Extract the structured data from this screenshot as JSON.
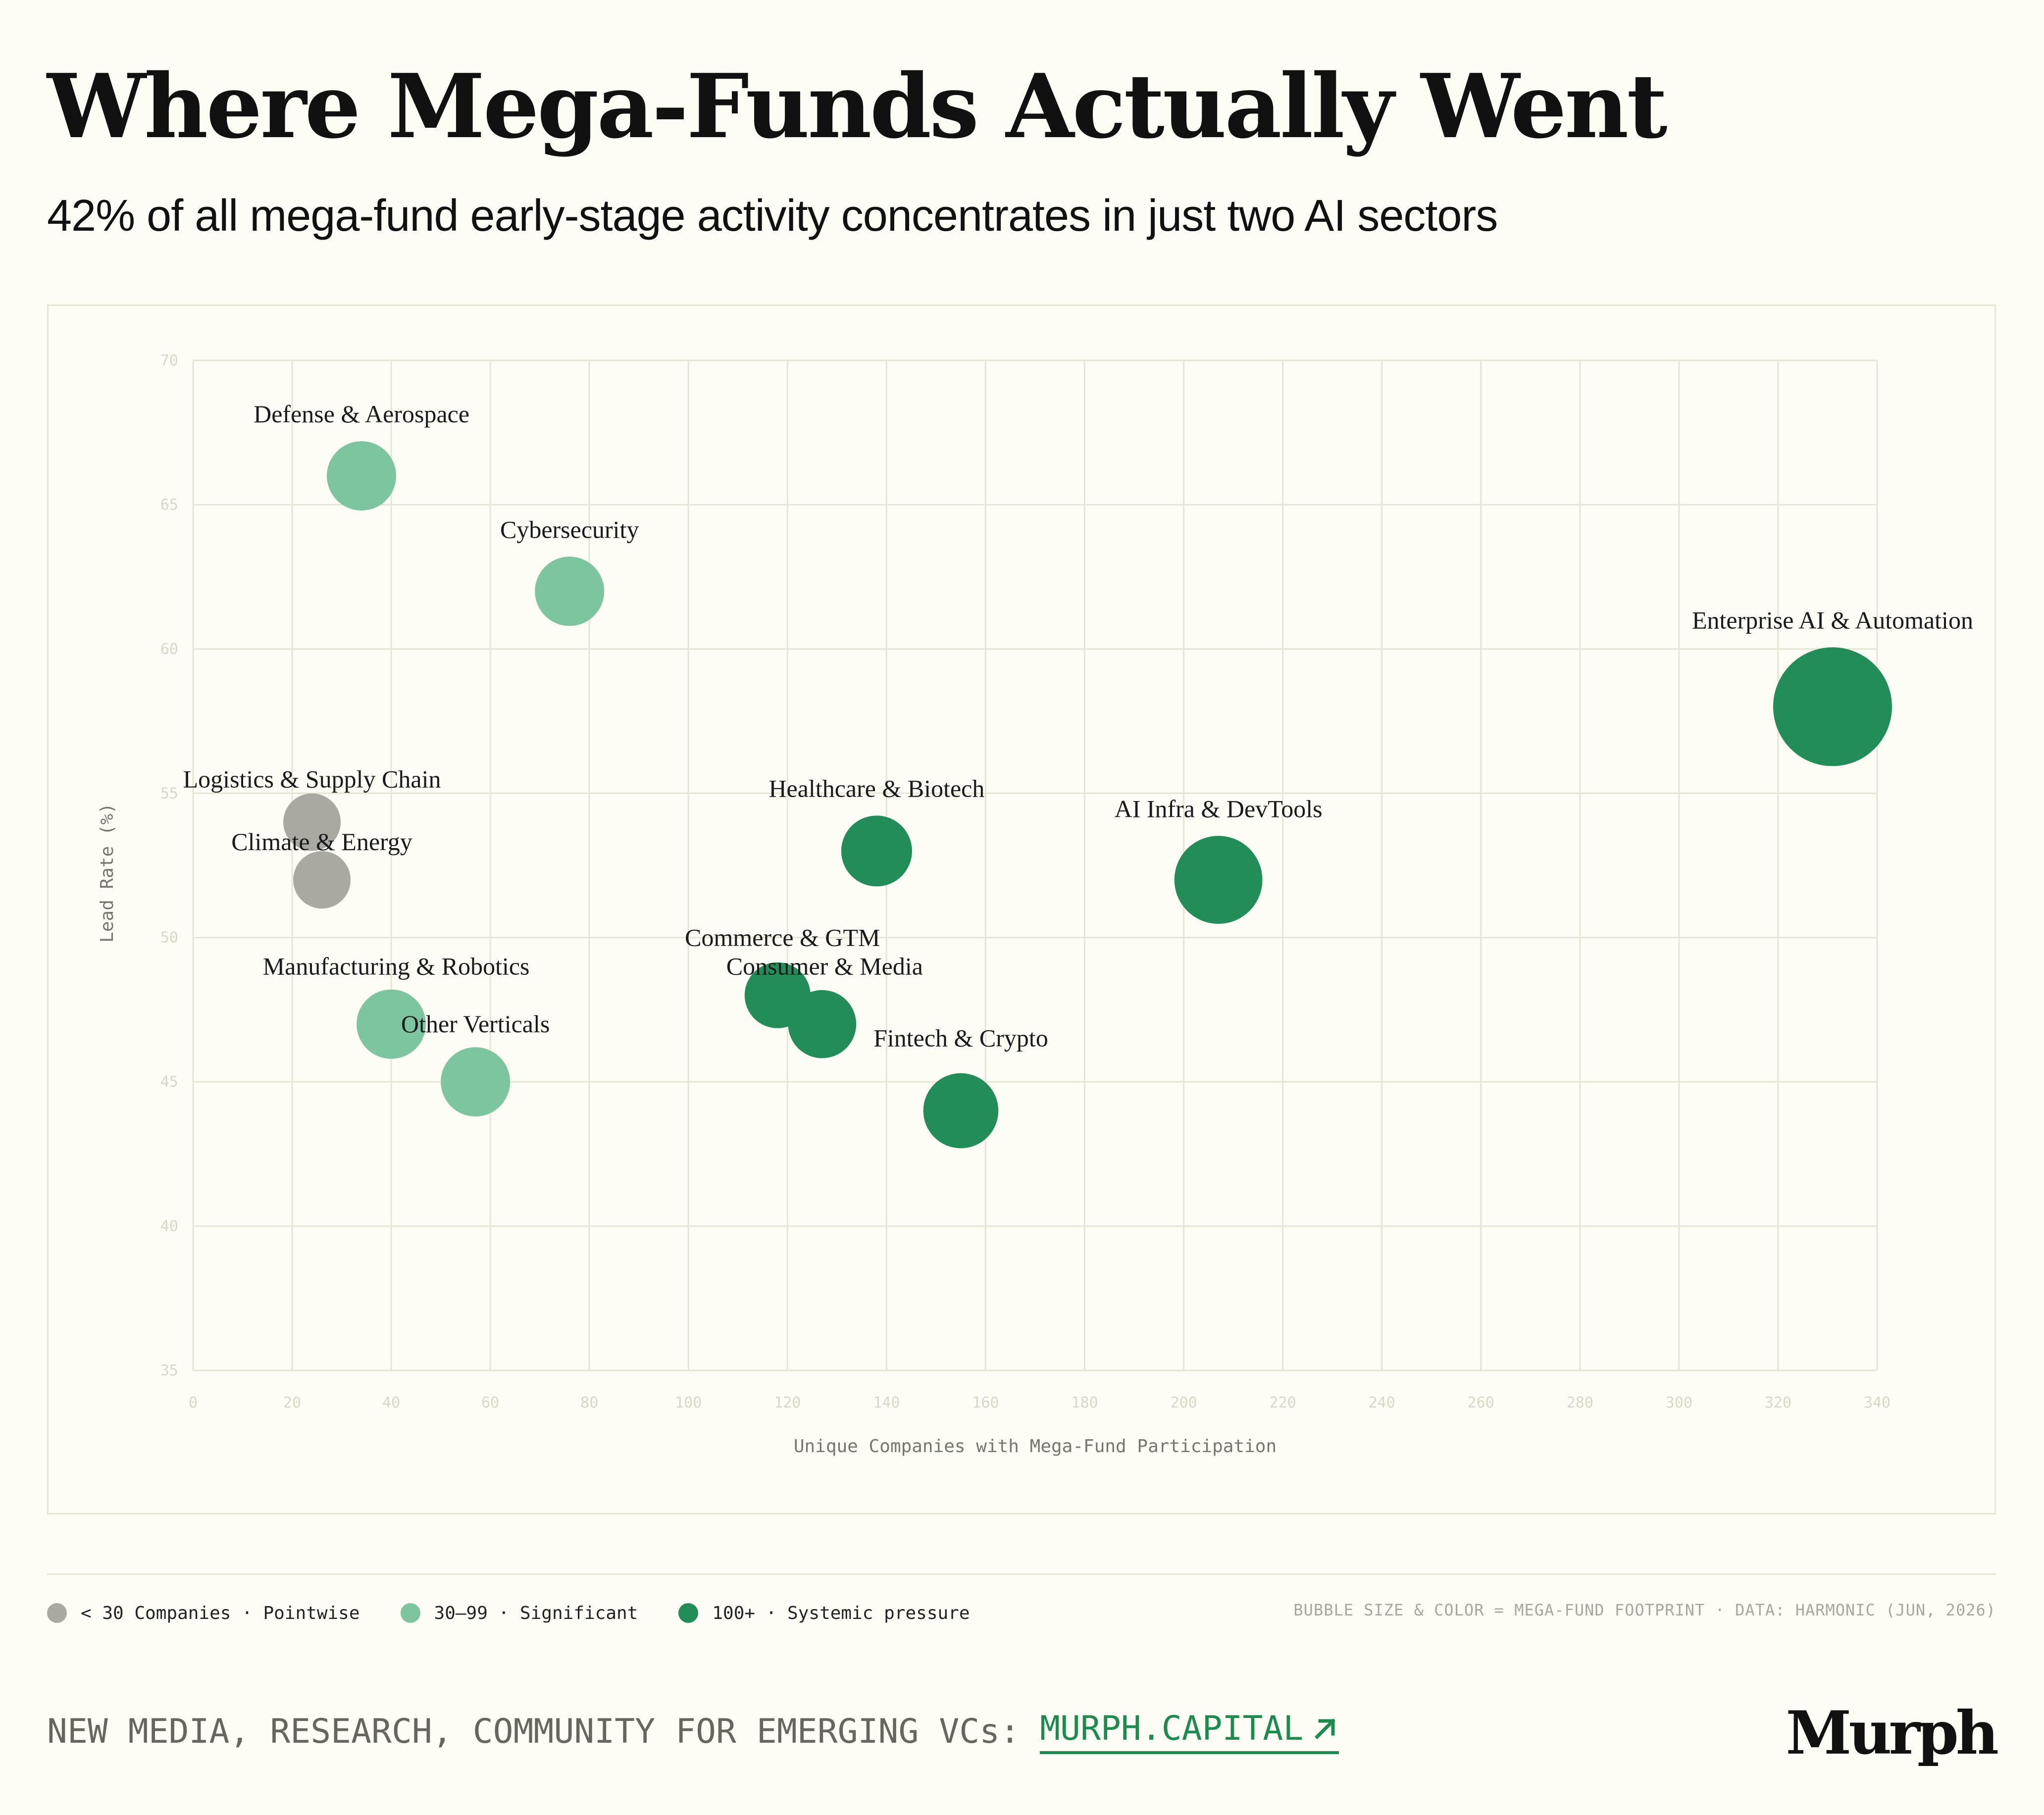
{
  "title": "Where Mega-Funds Actually Went",
  "subtitle": "42% of all mega-fund early-stage activity concentrates in just two AI sectors",
  "colors": {
    "small": "#aaa9a0",
    "significant": "#7dc59e",
    "systemic": "#228d58",
    "accent": "#1f8a4f",
    "grid": "#e6e4d2"
  },
  "chart_data": {
    "type": "scatter",
    "xlabel": "Unique Companies with Mega-Fund Participation",
    "ylabel": "Lead Rate (%)",
    "xlim": [
      0,
      340
    ],
    "ylim": [
      35,
      70
    ],
    "x_ticks": [
      0,
      20,
      40,
      60,
      80,
      100,
      120,
      140,
      160,
      180,
      200,
      220,
      240,
      260,
      280,
      300,
      320,
      340
    ],
    "y_ticks": [
      35,
      40,
      45,
      50,
      55,
      60,
      65,
      70
    ],
    "grid": true,
    "points": [
      {
        "label": "Defense & Aerospace",
        "x": 34,
        "y": 66,
        "tier": "significant"
      },
      {
        "label": "Cybersecurity",
        "x": 76,
        "y": 62,
        "tier": "significant"
      },
      {
        "label": "Enterprise AI & Automation",
        "x": 331,
        "y": 58,
        "tier": "systemic"
      },
      {
        "label": "Logistics & Supply Chain",
        "x": 24,
        "y": 54,
        "tier": "small"
      },
      {
        "label": "Climate & Energy",
        "x": 26,
        "y": 52,
        "tier": "small"
      },
      {
        "label": "Healthcare & Biotech",
        "x": 138,
        "y": 53,
        "tier": "systemic"
      },
      {
        "label": "AI Infra & DevTools",
        "x": 207,
        "y": 52,
        "tier": "systemic"
      },
      {
        "label": "Commerce & GTM",
        "x": 118,
        "y": 48,
        "tier": "systemic"
      },
      {
        "label": "Consumer & Media",
        "x": 127,
        "y": 47,
        "tier": "systemic"
      },
      {
        "label": "Manufacturing & Robotics",
        "x": 40,
        "y": 47,
        "tier": "significant"
      },
      {
        "label": "Other Verticals",
        "x": 57,
        "y": 45,
        "tier": "significant"
      },
      {
        "label": "Fintech & Crypto",
        "x": 155,
        "y": 44,
        "tier": "systemic"
      }
    ]
  },
  "legend": {
    "items": [
      {
        "label": "< 30 Companies · Pointwise",
        "tier": "small"
      },
      {
        "label": "30–99 · Significant",
        "tier": "significant"
      },
      {
        "label": "100+ · Systemic pressure",
        "tier": "systemic"
      }
    ]
  },
  "source_note": "BUBBLE SIZE & COLOR = MEGA-FUND FOOTPRINT · DATA: HARMONIC (JUN, 2026)",
  "footer": {
    "text": "NEW MEDIA, RESEARCH, COMMUNITY FOR EMERGING VCs:",
    "link_label": "MURPH.CAPITAL"
  },
  "brand": "Murph"
}
